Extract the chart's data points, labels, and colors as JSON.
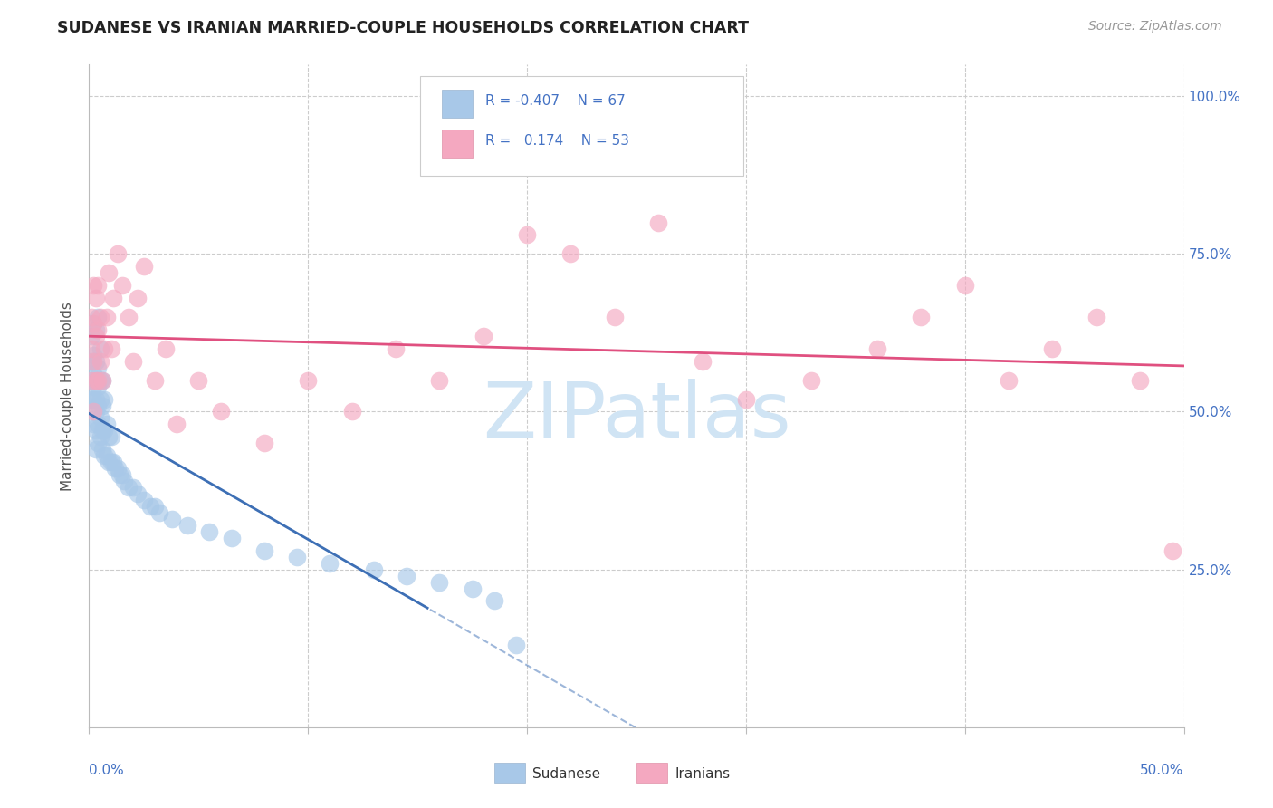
{
  "title": "SUDANESE VS IRANIAN MARRIED-COUPLE HOUSEHOLDS CORRELATION CHART",
  "source": "Source: ZipAtlas.com",
  "ylabel": "Married-couple Households",
  "sudanese_color": "#a8c8e8",
  "iranian_color": "#f4a8c0",
  "trendline_sudanese_color": "#3d6fb5",
  "trendline_iranian_color": "#e05080",
  "watermark_color": "#d0e4f4",
  "xmin": 0.0,
  "xmax": 0.5,
  "ymin": 0.0,
  "ymax": 1.05,
  "sudanese_x": [
    0.001,
    0.001,
    0.001,
    0.001,
    0.002,
    0.002,
    0.002,
    0.002,
    0.002,
    0.002,
    0.003,
    0.003,
    0.003,
    0.003,
    0.003,
    0.003,
    0.003,
    0.004,
    0.004,
    0.004,
    0.004,
    0.004,
    0.004,
    0.005,
    0.005,
    0.005,
    0.005,
    0.005,
    0.006,
    0.006,
    0.006,
    0.006,
    0.007,
    0.007,
    0.007,
    0.008,
    0.008,
    0.009,
    0.009,
    0.01,
    0.01,
    0.011,
    0.012,
    0.013,
    0.014,
    0.015,
    0.016,
    0.018,
    0.02,
    0.022,
    0.025,
    0.028,
    0.03,
    0.032,
    0.038,
    0.045,
    0.055,
    0.065,
    0.08,
    0.095,
    0.11,
    0.13,
    0.145,
    0.16,
    0.175,
    0.185,
    0.195
  ],
  "sudanese_y": [
    0.52,
    0.55,
    0.58,
    0.62,
    0.48,
    0.52,
    0.54,
    0.56,
    0.59,
    0.64,
    0.44,
    0.47,
    0.5,
    0.52,
    0.55,
    0.58,
    0.63,
    0.45,
    0.48,
    0.51,
    0.54,
    0.57,
    0.65,
    0.46,
    0.49,
    0.52,
    0.55,
    0.6,
    0.44,
    0.47,
    0.51,
    0.55,
    0.43,
    0.47,
    0.52,
    0.43,
    0.48,
    0.42,
    0.46,
    0.42,
    0.46,
    0.42,
    0.41,
    0.41,
    0.4,
    0.4,
    0.39,
    0.38,
    0.38,
    0.37,
    0.36,
    0.35,
    0.35,
    0.34,
    0.33,
    0.32,
    0.31,
    0.3,
    0.28,
    0.27,
    0.26,
    0.25,
    0.24,
    0.23,
    0.22,
    0.2,
    0.13
  ],
  "iranian_x": [
    0.001,
    0.001,
    0.001,
    0.002,
    0.002,
    0.002,
    0.002,
    0.003,
    0.003,
    0.003,
    0.004,
    0.004,
    0.004,
    0.005,
    0.005,
    0.006,
    0.007,
    0.008,
    0.009,
    0.01,
    0.011,
    0.013,
    0.015,
    0.018,
    0.02,
    0.022,
    0.025,
    0.03,
    0.035,
    0.04,
    0.05,
    0.06,
    0.08,
    0.1,
    0.12,
    0.14,
    0.16,
    0.18,
    0.2,
    0.22,
    0.24,
    0.26,
    0.28,
    0.3,
    0.33,
    0.36,
    0.38,
    0.4,
    0.42,
    0.44,
    0.46,
    0.48,
    0.495
  ],
  "iranian_y": [
    0.55,
    0.6,
    0.65,
    0.5,
    0.58,
    0.64,
    0.7,
    0.55,
    0.62,
    0.68,
    0.55,
    0.63,
    0.7,
    0.58,
    0.65,
    0.55,
    0.6,
    0.65,
    0.72,
    0.6,
    0.68,
    0.75,
    0.7,
    0.65,
    0.58,
    0.68,
    0.73,
    0.55,
    0.6,
    0.48,
    0.55,
    0.5,
    0.45,
    0.55,
    0.5,
    0.6,
    0.55,
    0.62,
    0.78,
    0.75,
    0.65,
    0.8,
    0.58,
    0.52,
    0.55,
    0.6,
    0.65,
    0.7,
    0.55,
    0.6,
    0.65,
    0.55,
    0.28
  ],
  "trendline_sudanese_x_start": 0.0,
  "trendline_sudanese_x_solid_end": 0.155,
  "trendline_sudanese_x_end": 0.35,
  "trendline_iranian_x_start": 0.0,
  "trendline_iranian_x_end": 0.5
}
